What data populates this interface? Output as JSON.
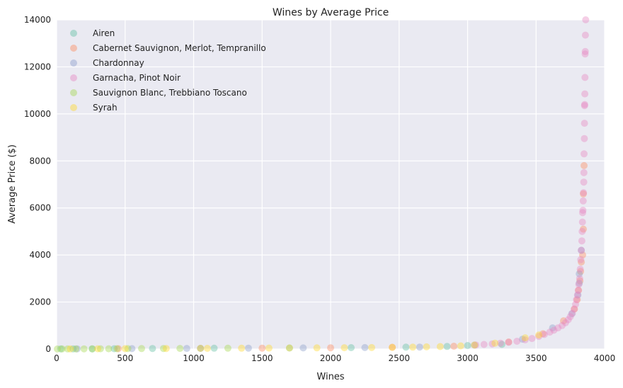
{
  "chart_data": {
    "type": "scatter",
    "title": "Wines by Average Price",
    "xlabel": "Wines",
    "ylabel": "Average Price ($)",
    "xlim": [
      0,
      4000
    ],
    "ylim": [
      0,
      14000
    ],
    "xticks": [
      "0",
      "500",
      "1000",
      "1500",
      "2000",
      "2500",
      "3000",
      "3500",
      "4000"
    ],
    "yticks": [
      "0",
      "2000",
      "4000",
      "6000",
      "8000",
      "10000",
      "12000",
      "14000"
    ],
    "grid": true,
    "legend_position": "top-left",
    "background_color": "#EAEAF2",
    "series": [
      {
        "name": "Airen",
        "color": "#66C2A5",
        "points": [
          [
            30,
            5
          ],
          [
            120,
            8
          ],
          [
            260,
            10
          ],
          [
            420,
            15
          ],
          [
            700,
            25
          ],
          [
            1150,
            35
          ],
          [
            1700,
            45
          ],
          [
            2150,
            60
          ],
          [
            2550,
            80
          ],
          [
            2850,
            110
          ],
          [
            3000,
            150
          ],
          [
            3250,
            200
          ]
        ]
      },
      {
        "name": "Cabernet Sauvignon, Merlot, Tempranillo",
        "color": "#FC8D62",
        "points": [
          [
            450,
            15
          ],
          [
            1050,
            30
          ],
          [
            1500,
            40
          ],
          [
            2000,
            55
          ],
          [
            2450,
            75
          ],
          [
            2900,
            120
          ],
          [
            3300,
            300
          ],
          [
            3550,
            650
          ],
          [
            3700,
            1200
          ],
          [
            3780,
            1700
          ],
          [
            3800,
            2100
          ],
          [
            3810,
            2500
          ],
          [
            3820,
            2900
          ],
          [
            3825,
            3300
          ],
          [
            3830,
            3700
          ],
          [
            3840,
            4000
          ],
          [
            3845,
            5100
          ],
          [
            3845,
            6600
          ],
          [
            3850,
            7800
          ]
        ]
      },
      {
        "name": "Chardonnay",
        "color": "#8DA0CB",
        "points": [
          [
            150,
            8
          ],
          [
            550,
            18
          ],
          [
            950,
            28
          ],
          [
            1400,
            38
          ],
          [
            1800,
            48
          ],
          [
            2250,
            62
          ],
          [
            2650,
            85
          ],
          [
            3050,
            170
          ],
          [
            3400,
            420
          ],
          [
            3620,
            900
          ],
          [
            3760,
            1500
          ],
          [
            3805,
            2300
          ],
          [
            3815,
            2800
          ],
          [
            3815,
            3200
          ],
          [
            3830,
            4200
          ]
        ]
      },
      {
        "name": "Garnacha, Pinot Noir",
        "color": "#E78AC3",
        "points": [
          [
            3060,
            175
          ],
          [
            3120,
            195
          ],
          [
            3180,
            220
          ],
          [
            3240,
            250
          ],
          [
            3300,
            285
          ],
          [
            3360,
            330
          ],
          [
            3420,
            390
          ],
          [
            3470,
            450
          ],
          [
            3520,
            540
          ],
          [
            3560,
            620
          ],
          [
            3600,
            720
          ],
          [
            3630,
            800
          ],
          [
            3660,
            900
          ],
          [
            3690,
            1000
          ],
          [
            3715,
            1120
          ],
          [
            3735,
            1250
          ],
          [
            3750,
            1380
          ],
          [
            3765,
            1520
          ],
          [
            3778,
            1700
          ],
          [
            3788,
            1900
          ],
          [
            3795,
            2100
          ],
          [
            3802,
            2300
          ],
          [
            3808,
            2500
          ],
          [
            3812,
            2750
          ],
          [
            3818,
            3000
          ],
          [
            3822,
            3400
          ],
          [
            3826,
            3800
          ],
          [
            3830,
            4200
          ],
          [
            3834,
            4600
          ],
          [
            3836,
            5000
          ],
          [
            3838,
            5400
          ],
          [
            3840,
            5800
          ],
          [
            3842,
            5900
          ],
          [
            3844,
            6300
          ],
          [
            3846,
            6650
          ],
          [
            3848,
            7100
          ],
          [
            3849,
            7500
          ],
          [
            3850,
            8300
          ],
          [
            3852,
            8950
          ],
          [
            3853,
            9600
          ],
          [
            3854,
            10350
          ],
          [
            3855,
            10400
          ],
          [
            3856,
            10850
          ],
          [
            3857,
            11550
          ],
          [
            3858,
            12550
          ],
          [
            3859,
            12650
          ],
          [
            3860,
            13350
          ],
          [
            3862,
            14000
          ]
        ]
      },
      {
        "name": "Sauvignon Blanc, Trebbiano Toscano",
        "color": "#A6D854",
        "points": [
          [
            5,
            3
          ],
          [
            40,
            5
          ],
          [
            80,
            6
          ],
          [
            140,
            8
          ],
          [
            200,
            9
          ],
          [
            260,
            10
          ],
          [
            320,
            12
          ],
          [
            380,
            13
          ],
          [
            440,
            15
          ],
          [
            520,
            17
          ],
          [
            620,
            20
          ],
          [
            780,
            24
          ],
          [
            900,
            27
          ],
          [
            1050,
            31
          ],
          [
            1250,
            35
          ]
        ]
      },
      {
        "name": "Syrah",
        "color": "#FFD92F",
        "points": [
          [
            100,
            7
          ],
          [
            300,
            12
          ],
          [
            500,
            17
          ],
          [
            800,
            24
          ],
          [
            1100,
            31
          ],
          [
            1350,
            37
          ],
          [
            1550,
            41
          ],
          [
            1700,
            45
          ],
          [
            1900,
            50
          ],
          [
            2100,
            57
          ],
          [
            2300,
            64
          ],
          [
            2450,
            72
          ],
          [
            2600,
            82
          ],
          [
            2700,
            92
          ],
          [
            2800,
            105
          ],
          [
            2950,
            135
          ],
          [
            3050,
            170
          ],
          [
            3200,
            250
          ],
          [
            3420,
            480
          ],
          [
            3520,
            600
          ]
        ]
      }
    ]
  }
}
